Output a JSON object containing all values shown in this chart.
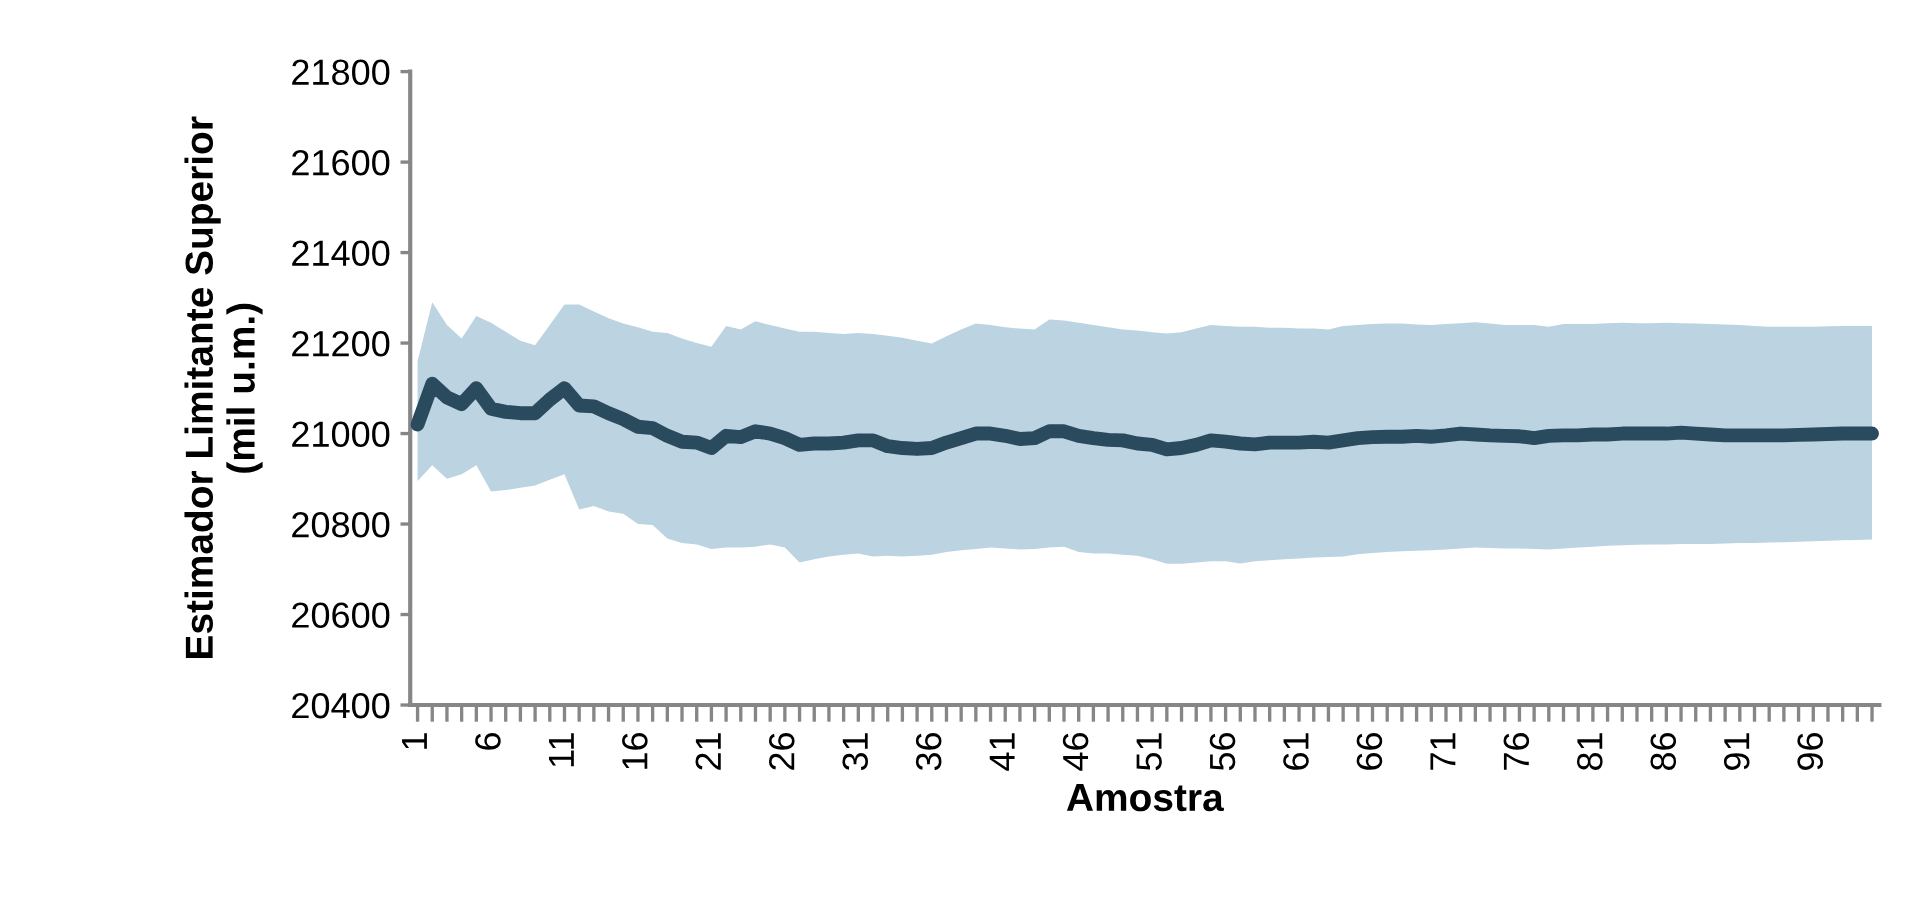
{
  "chart_data": {
    "type": "line",
    "xlabel": "Amostra",
    "ylabel": "Estimador Limitante Superior\n(mil u.m.)",
    "categories": [
      "1",
      null,
      null,
      null,
      null,
      "6",
      null,
      null,
      null,
      null,
      "11",
      null,
      null,
      null,
      null,
      "16",
      null,
      null,
      null,
      null,
      "21",
      null,
      null,
      null,
      null,
      "26",
      null,
      null,
      null,
      null,
      "31",
      null,
      null,
      null,
      null,
      "36",
      null,
      null,
      null,
      null,
      "41",
      null,
      null,
      null,
      null,
      "46",
      null,
      null,
      null,
      null,
      "51",
      null,
      null,
      null,
      null,
      "56",
      null,
      null,
      null,
      null,
      "61",
      null,
      null,
      null,
      null,
      "66",
      null,
      null,
      null,
      null,
      "71",
      null,
      null,
      null,
      null,
      "76",
      null,
      null,
      null,
      null,
      "81",
      null,
      null,
      null,
      null,
      "86",
      null,
      null,
      null,
      null,
      "91",
      null,
      null,
      null,
      null,
      "96",
      null,
      null,
      null,
      null
    ],
    "series": [
      {
        "color": "#2a4a5e",
        "values": [
          21020,
          21110,
          21080,
          21065,
          21100,
          21055,
          21048,
          21045,
          21045,
          21075,
          21100,
          21062,
          21060,
          21045,
          21032,
          21015,
          21012,
          20995,
          20982,
          20980,
          20968,
          20995,
          20992,
          21005,
          21000,
          20990,
          20975,
          20978,
          20978,
          20980,
          20985,
          20985,
          20972,
          20968,
          20966,
          20968,
          20980,
          20990,
          21000,
          21000,
          20995,
          20988,
          20990,
          21005,
          21005,
          20995,
          20990,
          20986,
          20985,
          20978,
          20975,
          20965,
          20968,
          20975,
          20985,
          20982,
          20978,
          20976,
          20980,
          20980,
          20980,
          20982,
          20980,
          20985,
          20990,
          20992,
          20993,
          20993,
          20995,
          20993,
          20996,
          21000,
          20998,
          20996,
          20995,
          20994,
          20990,
          20995,
          20996,
          20996,
          20998,
          20998,
          21000,
          21000,
          21000,
          21000,
          21002,
          21000,
          20998,
          20996,
          20996,
          20996,
          20996,
          20996,
          20997,
          20998,
          20999,
          21000,
          21000,
          21000
        ],
        "upper": [
          21160,
          21290,
          21240,
          21210,
          21260,
          21245,
          21225,
          21205,
          21195,
          21240,
          21285,
          21285,
          21270,
          21255,
          21243,
          21235,
          21225,
          21222,
          21210,
          21200,
          21192,
          21238,
          21230,
          21248,
          21240,
          21232,
          21225,
          21225,
          21222,
          21220,
          21222,
          21220,
          21216,
          21212,
          21205,
          21199,
          21215,
          21230,
          21243,
          21240,
          21235,
          21232,
          21230,
          21252,
          21250,
          21245,
          21240,
          21235,
          21230,
          21228,
          21224,
          21221,
          21224,
          21232,
          21240,
          21238,
          21236,
          21236,
          21234,
          21234,
          21232,
          21232,
          21230,
          21238,
          21240,
          21242,
          21243,
          21243,
          21241,
          21240,
          21242,
          21244,
          21246,
          21243,
          21240,
          21240,
          21240,
          21236,
          21242,
          21242,
          21242,
          21244,
          21245,
          21244,
          21244,
          21245,
          21244,
          21243,
          21242,
          21241,
          21240,
          21238,
          21236,
          21236,
          21236,
          21236,
          21237,
          21238,
          21238,
          21238
        ],
        "lower": [
          20895,
          20930,
          20900,
          20910,
          20930,
          20872,
          20875,
          20880,
          20885,
          20898,
          20910,
          20832,
          20840,
          20828,
          20823,
          20800,
          20798,
          20768,
          20758,
          20755,
          20745,
          20748,
          20748,
          20750,
          20755,
          20748,
          20715,
          20722,
          20728,
          20732,
          20735,
          20728,
          20730,
          20728,
          20730,
          20732,
          20738,
          20742,
          20745,
          20748,
          20746,
          20744,
          20745,
          20748,
          20750,
          20738,
          20735,
          20735,
          20732,
          20730,
          20722,
          20712,
          20712,
          20715,
          20718,
          20718,
          20713,
          20718,
          20720,
          20722,
          20724,
          20726,
          20727,
          20728,
          20733,
          20736,
          20738,
          20740,
          20741,
          20742,
          20744,
          20746,
          20748,
          20747,
          20746,
          20746,
          20745,
          20744,
          20746,
          20748,
          20750,
          20752,
          20753,
          20754,
          20755,
          20755,
          20756,
          20756,
          20756,
          20757,
          20758,
          20758,
          20759,
          20760,
          20761,
          20762,
          20763,
          20764,
          20765,
          20766
        ]
      }
    ],
    "ylim": [
      20400,
      21800
    ],
    "yticks": [
      20400,
      20600,
      20800,
      21000,
      21200,
      21400,
      21600,
      21800
    ],
    "grid": false,
    "legend": false,
    "marker": "none",
    "line_style": "solid"
  }
}
